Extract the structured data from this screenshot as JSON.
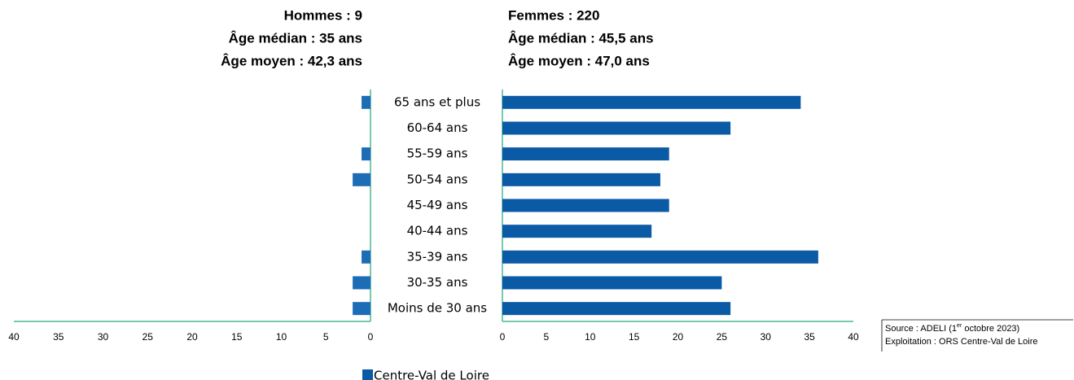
{
  "chart_data": {
    "type": "pyramid",
    "categories": [
      "65 ans et plus",
      "60-64 ans",
      "55-59 ans",
      "50-54 ans",
      "45-49 ans",
      "40-44 ans",
      "35-39 ans",
      "30-35 ans",
      "Moins de 30 ans"
    ],
    "legend": "Centre-Val de Loire",
    "axis_color": "#4cb59a",
    "panels": [
      {
        "title": [
          "Hommes : 9",
          "Âge médian : 35 ans",
          "Âge moyen : 42,3 ans"
        ],
        "values": [
          1,
          0,
          1,
          2,
          0,
          0,
          1,
          2,
          2
        ],
        "color": "#1c6db6",
        "x_reversed": true,
        "xlim": [
          0,
          40
        ],
        "xticks": [
          0,
          5,
          10,
          15,
          20,
          25,
          30,
          35,
          40
        ]
      },
      {
        "title": [
          "Femmes : 220",
          "Âge médian : 45,5 ans",
          "Âge moyen : 47,0 ans"
        ],
        "values": [
          34,
          26,
          19,
          18,
          19,
          17,
          36,
          25,
          26
        ],
        "color": "#0b5aa6",
        "x_reversed": false,
        "xlim": [
          0,
          40
        ],
        "xticks": [
          0,
          5,
          10,
          15,
          20,
          25,
          30,
          35,
          40
        ]
      }
    ]
  },
  "notes": {
    "source_prefix": "Source : ADELI (1",
    "source_sup": "er",
    "source_suffix": " octobre 2023)",
    "exploitation": "Exploitation : ORS Centre-Val de Loire"
  }
}
